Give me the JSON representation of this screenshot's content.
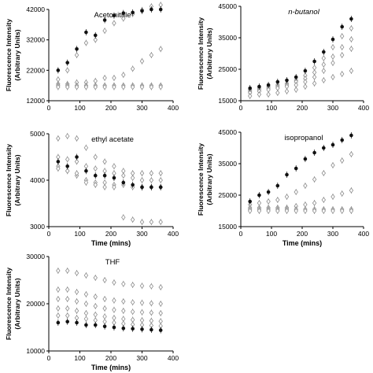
{
  "chart_data": [
    {
      "type": "scatter",
      "title": "Acetonitrile",
      "title_italic": false,
      "xlabel": "Time (mins)",
      "ylabel": "Fluorescence Intensity (Arbitrary Units)",
      "ylabel_lines": [
        "Fluorescence Intensity",
        "(Arbitrary Units)"
      ],
      "xlim": [
        0,
        400
      ],
      "ylim": [
        12000,
        42000
      ],
      "xticks": [
        0,
        100,
        200,
        300,
        400
      ],
      "yticks": [
        12000,
        22000,
        32000,
        42000
      ],
      "show_x_label": false,
      "x": [
        30,
        60,
        90,
        120,
        150,
        180,
        210,
        240,
        270,
        300,
        330,
        360
      ],
      "series": [
        {
          "marker": "filled-circle",
          "values": [
            22000,
            24500,
            29000,
            34500,
            33500,
            38500,
            40000,
            40800,
            41000,
            41500,
            42000,
            42000
          ]
        },
        {
          "marker": "open-diamond",
          "values": [
            19000,
            22000,
            27000,
            31000,
            32000,
            35000,
            37500,
            39000,
            40500,
            41800,
            43000,
            43500
          ]
        },
        {
          "marker": "open-diamond",
          "values": [
            17500,
            17500,
            18000,
            18000,
            18500,
            19500,
            19500,
            20500,
            22500,
            25000,
            27000,
            29000
          ]
        },
        {
          "marker": "open-diamond",
          "values": [
            17000,
            17000,
            17000,
            17000,
            17000,
            17000,
            17000,
            17000,
            17000,
            17000,
            17000,
            17000
          ]
        },
        {
          "marker": "open-diamond",
          "values": [
            16500,
            16500,
            16500,
            16500,
            16500,
            16500,
            16500,
            16500,
            16500,
            16500,
            16500,
            16500
          ]
        }
      ]
    },
    {
      "type": "scatter",
      "title": "n-butanol",
      "title_italic": true,
      "xlabel": "Time (mins)",
      "ylabel": "Fluorescence Intensity (Arbitrary Units)",
      "ylabel_lines": [
        "Fluorescence Intensity",
        "(Arbitrary Units)"
      ],
      "xlim": [
        0,
        400
      ],
      "ylim": [
        15000,
        45000
      ],
      "xticks": [
        0,
        100,
        200,
        300,
        400
      ],
      "yticks": [
        15000,
        25000,
        35000,
        45000
      ],
      "show_x_label": false,
      "x": [
        30,
        60,
        90,
        120,
        150,
        180,
        210,
        240,
        270,
        300,
        330,
        360
      ],
      "series": [
        {
          "marker": "filled-circle",
          "values": [
            19000,
            19500,
            20000,
            21000,
            21500,
            22500,
            24500,
            27500,
            30500,
            34500,
            38500,
            41000
          ]
        },
        {
          "marker": "open-diamond",
          "values": [
            18500,
            19000,
            19500,
            20000,
            20500,
            21500,
            23000,
            25500,
            28500,
            32000,
            35500,
            38000
          ]
        },
        {
          "marker": "open-diamond",
          "values": [
            18000,
            18500,
            19000,
            19500,
            20000,
            21000,
            22000,
            24000,
            26500,
            29000,
            32000,
            34500
          ]
        },
        {
          "marker": "open-diamond",
          "values": [
            17500,
            18000,
            18500,
            19000,
            19500,
            20000,
            21000,
            22500,
            24500,
            27000,
            29500,
            31500
          ]
        },
        {
          "marker": "open-diamond",
          "values": [
            16500,
            17000,
            17000,
            17500,
            18000,
            18500,
            19500,
            20500,
            21500,
            22500,
            23500,
            24500
          ]
        }
      ]
    },
    {
      "type": "scatter",
      "title": "ethyl acetate",
      "title_italic": false,
      "xlabel": "Time (mins)",
      "ylabel": "Fluorescence Intensity (Arbitrary Units)",
      "ylabel_lines": [
        "Fluorescence Intensity",
        "(Arbitrary Units)"
      ],
      "xlim": [
        0,
        400
      ],
      "ylim": [
        3000,
        5000
      ],
      "xticks": [
        0,
        100,
        200,
        300,
        400
      ],
      "yticks": [
        3000,
        4000,
        5000
      ],
      "show_x_label": true,
      "x": [
        30,
        60,
        90,
        120,
        150,
        180,
        210,
        240,
        270,
        300,
        330,
        360
      ],
      "series": [
        {
          "marker": "filled-circle",
          "values": [
            4400,
            4300,
            4500,
            4200,
            4100,
            4100,
            4050,
            3950,
            3900,
            3850,
            3850,
            3850
          ]
        },
        {
          "marker": "open-diamond",
          "values": [
            4900,
            4950,
            4900,
            4700,
            4500,
            4400,
            4300,
            4200,
            4150,
            4150,
            4150,
            4150
          ]
        },
        {
          "marker": "open-diamond",
          "values": [
            4500,
            4450,
            4400,
            4300,
            4250,
            4200,
            4150,
            4100,
            4050,
            4000,
            4000,
            4000
          ]
        },
        {
          "marker": "open-diamond",
          "values": [
            4300,
            4200,
            4100,
            4000,
            3950,
            3950,
            3900,
            3900,
            3850,
            3850,
            3850,
            3850
          ]
        },
        {
          "marker": "open-diamond",
          "values": [
            4250,
            4200,
            4150,
            3950,
            3900,
            3850,
            3850,
            3200,
            3150,
            3100,
            3100,
            3100
          ]
        }
      ]
    },
    {
      "type": "scatter",
      "title": "isopropanol",
      "title_italic": false,
      "xlabel": "Time (mins)",
      "ylabel": "Fluorescence Intensity (Arbitrary Units)",
      "ylabel_lines": [
        "Fluorescence Intensity",
        "(Arbitrary Units)"
      ],
      "xlim": [
        0,
        400
      ],
      "ylim": [
        15000,
        45000
      ],
      "xticks": [
        0,
        100,
        200,
        300,
        400
      ],
      "yticks": [
        15000,
        25000,
        35000,
        45000
      ],
      "show_x_label": true,
      "x": [
        30,
        60,
        90,
        120,
        150,
        180,
        210,
        240,
        270,
        300,
        330,
        360
      ],
      "series": [
        {
          "marker": "filled-circle",
          "values": [
            23000,
            25000,
            26000,
            28000,
            31500,
            33500,
            36500,
            38500,
            40000,
            41000,
            42500,
            44000
          ]
        },
        {
          "marker": "open-diamond",
          "values": [
            22000,
            22500,
            23000,
            23500,
            24500,
            26000,
            28000,
            30000,
            32000,
            34500,
            36000,
            38000
          ]
        },
        {
          "marker": "open-diamond",
          "values": [
            21000,
            21000,
            21000,
            21000,
            21000,
            21500,
            22000,
            22500,
            23500,
            24500,
            25500,
            26500
          ]
        },
        {
          "marker": "open-diamond",
          "values": [
            20500,
            20500,
            20500,
            20500,
            20500,
            20500,
            20500,
            20500,
            20500,
            20500,
            20500,
            20500
          ]
        },
        {
          "marker": "open-diamond",
          "values": [
            20000,
            20000,
            20000,
            20000,
            20000,
            20000,
            20000,
            20000,
            20000,
            20000,
            20000,
            20000
          ]
        }
      ]
    },
    {
      "type": "scatter",
      "title": "THF",
      "title_italic": false,
      "xlabel": "Time (mins)",
      "ylabel": "Fluorescence Intensity (Arbitrary Units)",
      "ylabel_lines": [
        "Fluorescence Intensity",
        "(Arbitrary Units)"
      ],
      "xlim": [
        0,
        400
      ],
      "ylim": [
        10000,
        30000
      ],
      "xticks": [
        0,
        100,
        200,
        300,
        400
      ],
      "yticks": [
        10000,
        20000,
        30000
      ],
      "show_x_label": true,
      "x": [
        30,
        60,
        90,
        120,
        150,
        180,
        210,
        240,
        270,
        300,
        330,
        360
      ],
      "series": [
        {
          "marker": "filled-circle",
          "values": [
            16000,
            16200,
            16000,
            15500,
            15500,
            15200,
            15000,
            14800,
            14700,
            14600,
            14500,
            14400
          ]
        },
        {
          "marker": "open-diamond",
          "values": [
            27000,
            27000,
            26500,
            26000,
            25500,
            25000,
            24500,
            24200,
            24000,
            23800,
            23700,
            23500
          ]
        },
        {
          "marker": "open-diamond",
          "values": [
            23000,
            23000,
            22500,
            22000,
            21500,
            21000,
            20700,
            20500,
            20300,
            20200,
            20100,
            20000
          ]
        },
        {
          "marker": "open-diamond",
          "values": [
            21000,
            21000,
            20500,
            20000,
            19500,
            19000,
            18700,
            18500,
            18300,
            18200,
            18100,
            18000
          ]
        },
        {
          "marker": "open-diamond",
          "values": [
            19000,
            19000,
            18500,
            18000,
            17700,
            17300,
            17000,
            16800,
            16600,
            16500,
            16400,
            16300
          ]
        },
        {
          "marker": "open-diamond",
          "values": [
            17500,
            17500,
            17000,
            16800,
            16500,
            16200,
            16000,
            15800,
            15600,
            15500,
            15400,
            15300
          ]
        }
      ]
    }
  ],
  "colors": {
    "filled_marker": "#111111",
    "open_marker": "#8c8c8c",
    "axis": "#000000",
    "text": "#000000"
  }
}
